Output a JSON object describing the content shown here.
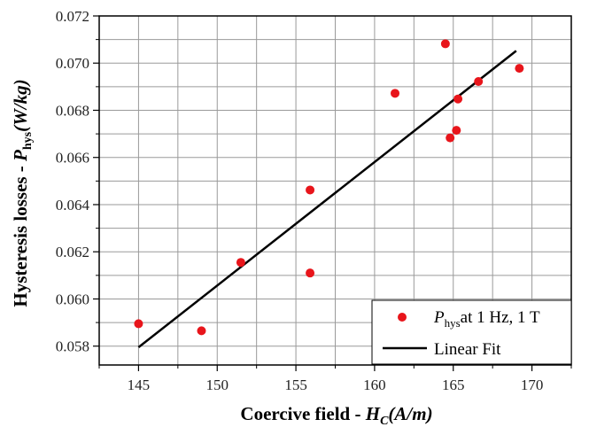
{
  "chart_data": {
    "type": "scatter",
    "xlabel": {
      "prefix": "Coercive field - ",
      "symbol": "H",
      "subscript": "C",
      "unit": "(A/m)"
    },
    "ylabel": {
      "prefix": "Hysteresis losses - ",
      "symbol": "P",
      "subscript": "hys",
      "unit": "(W/kg)"
    },
    "xlim": [
      142.5,
      172.5
    ],
    "ylim": [
      0.0572,
      0.072
    ],
    "x_ticks": [
      {
        "value": 145,
        "label": "145"
      },
      {
        "value": 150,
        "label": "150"
      },
      {
        "value": 155,
        "label": "155"
      },
      {
        "value": 160,
        "label": "160"
      },
      {
        "value": 165,
        "label": "165"
      },
      {
        "value": 170,
        "label": "170"
      }
    ],
    "y_ticks": [
      {
        "value": 0.058,
        "label": "0.058"
      },
      {
        "value": 0.06,
        "label": "0.060"
      },
      {
        "value": 0.062,
        "label": "0.062"
      },
      {
        "value": 0.064,
        "label": "0.064"
      },
      {
        "value": 0.066,
        "label": "0.066"
      },
      {
        "value": 0.068,
        "label": "0.068"
      },
      {
        "value": 0.07,
        "label": "0.070"
      },
      {
        "value": 0.072,
        "label": "0.072"
      }
    ],
    "grid": true,
    "legend_position": "bottom-right",
    "series": [
      {
        "name": {
          "symbol": "P",
          "subscript": "hys",
          "suffix": "at 1 Hz, 1 T"
        },
        "kind": "scatter",
        "color": "#e8151b",
        "points": [
          {
            "x": 145.0,
            "y": 0.05895
          },
          {
            "x": 149.0,
            "y": 0.05865
          },
          {
            "x": 151.5,
            "y": 0.06155
          },
          {
            "x": 155.9,
            "y": 0.06462
          },
          {
            "x": 155.9,
            "y": 0.0611
          },
          {
            "x": 161.3,
            "y": 0.06872
          },
          {
            "x": 164.5,
            "y": 0.07082
          },
          {
            "x": 164.8,
            "y": 0.06683
          },
          {
            "x": 165.2,
            "y": 0.06715
          },
          {
            "x": 165.3,
            "y": 0.06848
          },
          {
            "x": 166.6,
            "y": 0.06922
          },
          {
            "x": 169.2,
            "y": 0.06978
          }
        ]
      },
      {
        "name": {
          "symbol": "",
          "subscript": "",
          "suffix": "Linear Fit"
        },
        "kind": "line",
        "color": "#000000",
        "points": [
          {
            "x": 145.0,
            "y": 0.05795
          },
          {
            "x": 169.0,
            "y": 0.07052
          }
        ]
      }
    ]
  }
}
